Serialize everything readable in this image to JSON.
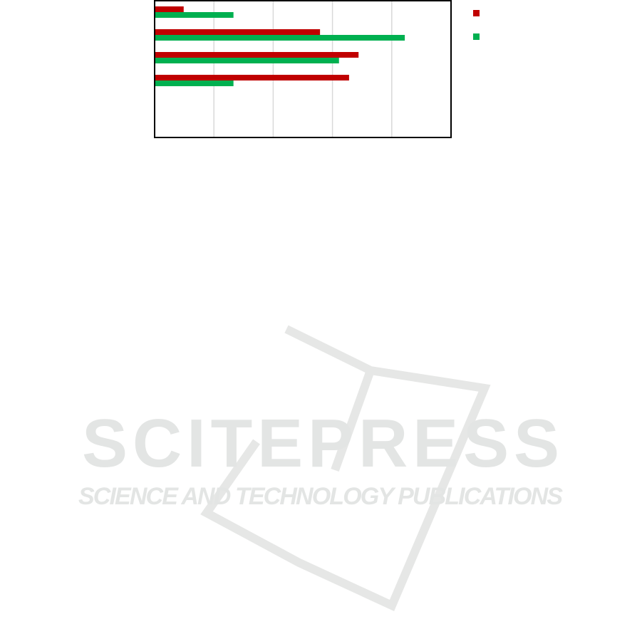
{
  "chart_data": {
    "type": "bar",
    "orientation": "horizontal",
    "title": "",
    "xlabel": "",
    "ylabel": "",
    "xlim": [
      0,
      5
    ],
    "grid": true,
    "legend_placement": "right",
    "categories": [
      "",
      "",
      "",
      ""
    ],
    "series": [
      {
        "color": "#c00000",
        "values": [
          0.49,
          2.79,
          3.44,
          3.28
        ]
      },
      {
        "color": "#00b050",
        "values": [
          1.33,
          4.22,
          3.11,
          1.33
        ]
      }
    ]
  },
  "watermark": {
    "logo_text": "SCITEPRESS",
    "tagline": "SCIENCE AND TECHNOLOGY PUBLICATIONS",
    "color": "#e3e5e4"
  }
}
